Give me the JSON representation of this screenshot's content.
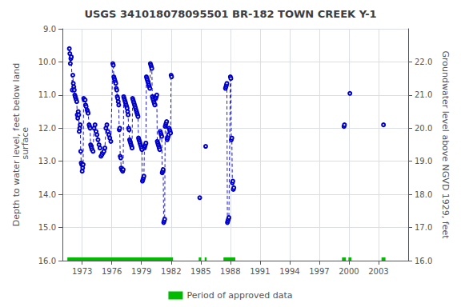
{
  "chart_data": {
    "type": "line",
    "title": "USGS 341018078095501 BR-182 TOWN CREEK Y-1",
    "ylabel": "Depth to water level, feet below land\n surface",
    "y2label": "Groundwater level above NGVD 1929, feet",
    "xlim": [
      1971.0,
      2006.0
    ],
    "xticks": [
      1973,
      1976,
      1979,
      1982,
      1985,
      1988,
      1991,
      1994,
      1997,
      2000,
      2003
    ],
    "ylim": [
      16.0,
      9.0
    ],
    "yticks": [
      {
        "value": 9.0,
        "label": "9.0"
      },
      {
        "value": 10.0,
        "label": "10.0"
      },
      {
        "value": 11.0,
        "label": "11.0"
      },
      {
        "value": 12.0,
        "label": "12.0"
      },
      {
        "value": 13.0,
        "label": "13.0"
      },
      {
        "value": 14.0,
        "label": "14.0"
      },
      {
        "value": 15.0,
        "label": "15.0"
      },
      {
        "value": 16.0,
        "label": "16.0"
      }
    ],
    "y2lim": [
      16.0,
      23.0
    ],
    "y2ticks": [
      {
        "value": 16.0,
        "label": "16.0"
      },
      {
        "value": 17.0,
        "label": "17.0"
      },
      {
        "value": 18.0,
        "label": "18.0"
      },
      {
        "value": 19.0,
        "label": "19.0"
      },
      {
        "value": 20.0,
        "label": "20.0"
      },
      {
        "value": 21.0,
        "label": "21.0"
      },
      {
        "value": 22.0,
        "label": "22.0"
      }
    ],
    "grid": true,
    "legend": "bottom",
    "series": [
      {
        "type": "line",
        "color": "#0000cc",
        "line_style": "dashed",
        "marker": "circle",
        "x": [
          1971.7,
          1971.75,
          1971.8,
          1971.85,
          1971.9,
          1972.0,
          1972.05,
          1972.1,
          1972.15,
          1972.2,
          1972.25,
          1972.3,
          1972.35,
          1972.4,
          1972.45,
          1972.5,
          1972.55,
          1972.6,
          1972.65,
          1972.7,
          1972.75,
          1972.8,
          1972.85,
          1972.9,
          1972.95,
          1973.0,
          1973.05,
          1973.1,
          1973.15,
          1973.2,
          1973.3,
          1973.35,
          1973.4,
          1973.5,
          1973.55,
          1973.6,
          1973.7,
          1973.75,
          1973.8,
          1973.85,
          1973.9,
          1973.95,
          1974.0,
          1974.1,
          1974.2,
          1974.3,
          1974.4,
          1974.5,
          1974.6,
          1974.7,
          1974.8,
          1974.9,
          1975.0,
          1975.1,
          1975.2,
          1975.3,
          1975.4,
          1975.5,
          1975.6,
          1975.7,
          1975.8,
          1975.9,
          1976.1,
          1976.15,
          1976.2,
          1976.25,
          1976.3,
          1976.35,
          1976.4,
          1976.45,
          1976.5,
          1976.55,
          1976.6,
          1976.65,
          1976.7,
          1976.75,
          1976.8,
          1976.85,
          1976.9,
          1976.95,
          1977.0,
          1977.1,
          1977.15,
          1977.2,
          1977.25,
          1977.3,
          1977.35,
          1977.4,
          1977.45,
          1977.5,
          1977.55,
          1977.6,
          1977.65,
          1977.7,
          1977.75,
          1977.8,
          1977.85,
          1977.9,
          1977.95,
          1978.0,
          1978.05,
          1978.1,
          1978.15,
          1978.2,
          1978.25,
          1978.3,
          1978.35,
          1978.4,
          1978.45,
          1978.5,
          1978.55,
          1978.6,
          1978.65,
          1978.7,
          1978.75,
          1978.8,
          1978.85,
          1978.9,
          1978.95,
          1979.0,
          1979.05,
          1979.1,
          1979.15,
          1979.2,
          1979.25,
          1979.3,
          1979.35,
          1979.4,
          1979.45,
          1979.5,
          1979.55,
          1979.6,
          1979.65,
          1979.7,
          1979.75,
          1979.8,
          1979.85,
          1979.9,
          1979.95,
          1980.0,
          1980.05,
          1980.1,
          1980.15,
          1980.2,
          1980.25,
          1980.3,
          1980.35,
          1980.4,
          1980.45,
          1980.5,
          1980.55,
          1980.6,
          1980.65,
          1980.7,
          1980.75,
          1980.8,
          1980.85,
          1980.9,
          1980.95,
          1981.0,
          1981.05,
          1981.1,
          1981.15,
          1981.2,
          1981.25,
          1981.3,
          1981.35,
          1981.4,
          1981.45,
          1981.5,
          1981.55,
          1981.6,
          1981.65,
          1981.7,
          1981.75,
          1981.8,
          1981.85,
          1981.9,
          1981.95,
          1982.0,
          1982.05,
          null,
          1984.9,
          null,
          1985.5,
          null,
          1987.5,
          1987.55,
          1987.6,
          1987.65,
          1987.7,
          1987.75,
          1987.8,
          1987.85,
          1988.0,
          1988.05,
          1988.1,
          1988.15,
          1988.2,
          1988.25,
          1988.3,
          1988.35,
          null,
          1999.5,
          1999.55,
          null,
          2000.1,
          null,
          2003.5
        ],
        "values": [
          9.6,
          9.75,
          10.05,
          9.9,
          9.85,
          10.85,
          10.4,
          10.65,
          10.75,
          10.85,
          11.0,
          11.05,
          11.1,
          11.15,
          11.2,
          11.6,
          11.7,
          11.5,
          11.6,
          12.1,
          12.0,
          11.9,
          12.7,
          13.05,
          13.1,
          13.3,
          13.2,
          13.1,
          11.1,
          11.15,
          11.15,
          11.3,
          11.35,
          11.45,
          11.5,
          11.55,
          11.9,
          11.95,
          12.0,
          12.5,
          12.55,
          12.6,
          12.65,
          12.7,
          12.0,
          11.9,
          12.1,
          12.2,
          12.35,
          12.5,
          12.6,
          12.85,
          12.8,
          12.75,
          12.7,
          12.6,
          12.0,
          11.9,
          12.1,
          12.2,
          12.3,
          12.4,
          10.05,
          10.1,
          10.45,
          10.5,
          10.55,
          10.6,
          10.65,
          10.8,
          10.85,
          11.05,
          11.1,
          11.2,
          11.3,
          12.05,
          12.0,
          12.85,
          12.9,
          13.2,
          13.25,
          13.3,
          13.25,
          11.05,
          11.1,
          11.15,
          11.2,
          11.25,
          11.3,
          11.35,
          11.4,
          11.5,
          11.6,
          12.0,
          12.05,
          12.35,
          12.4,
          12.45,
          12.5,
          12.55,
          12.6,
          11.1,
          11.15,
          11.2,
          11.25,
          11.3,
          11.35,
          11.4,
          11.45,
          11.5,
          11.55,
          11.6,
          11.65,
          12.3,
          12.35,
          12.4,
          12.45,
          12.5,
          12.55,
          12.6,
          12.65,
          13.6,
          13.55,
          13.5,
          13.45,
          12.6,
          12.55,
          12.5,
          12.45,
          10.45,
          10.5,
          10.55,
          10.6,
          10.65,
          10.7,
          10.75,
          10.8,
          10.05,
          10.1,
          10.15,
          10.2,
          11.05,
          11.1,
          11.15,
          11.2,
          11.25,
          11.3,
          11.05,
          11.1,
          11.05,
          11.0,
          12.4,
          12.45,
          12.5,
          12.55,
          12.6,
          12.65,
          12.1,
          12.15,
          12.2,
          12.25,
          13.35,
          13.3,
          13.25,
          14.85,
          14.8,
          14.75,
          11.95,
          11.9,
          11.85,
          11.8,
          12.35,
          12.3,
          12.25,
          12.2,
          12.0,
          12.05,
          12.1,
          12.15,
          10.4,
          10.45,
          null,
          14.1,
          null,
          12.55,
          null,
          10.8,
          10.75,
          10.7,
          10.65,
          14.85,
          14.8,
          14.75,
          14.7,
          10.45,
          10.5,
          12.35,
          12.3,
          13.65,
          13.6,
          13.85,
          13.8,
          null,
          11.95,
          11.9,
          null,
          10.95,
          null,
          11.9
        ]
      },
      {
        "name": "Period of approved data",
        "type": "bar",
        "orientation": "horizontal",
        "color": "#00bb00",
        "y": 16.0,
        "start": [
          1971.5,
          1984.8,
          1985.4,
          1987.3,
          1999.3,
          1999.95,
          2003.3
        ],
        "end": [
          1982.2,
          1985.05,
          1985.6,
          1988.5,
          1999.7,
          2000.25,
          2003.7
        ]
      }
    ]
  }
}
